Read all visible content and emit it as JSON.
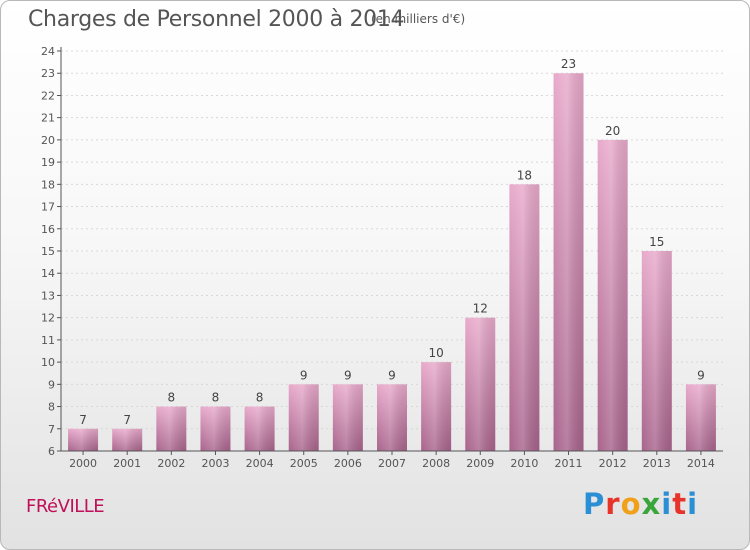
{
  "header": {
    "title": "Charges de Personnel 2000 à 2014",
    "subtitle": "(en milliers d'€)"
  },
  "footer": {
    "town": "FRéVILLE",
    "logo_text": "Proxiti",
    "logo_colors": [
      "#2a8fd4",
      "#e8332a",
      "#f0a019",
      "#3aa53a",
      "#2a8fd4",
      "#e8332a",
      "#2a8fd4"
    ]
  },
  "colors": {
    "bar_top": "#e8aacb",
    "bar_bottom": "#a8648c",
    "axis": "#555555",
    "grid": "#d8d8d8",
    "label": "#444444"
  },
  "chart_data": {
    "type": "bar",
    "categories": [
      "2000",
      "2001",
      "2002",
      "2003",
      "2004",
      "2005",
      "2006",
      "2007",
      "2008",
      "2009",
      "2010",
      "2011",
      "2012",
      "2013",
      "2014"
    ],
    "values": [
      7,
      7,
      8,
      8,
      8,
      9,
      9,
      9,
      10,
      12,
      18,
      23,
      20,
      15,
      9
    ],
    "ylim": [
      6,
      24
    ],
    "yticks": [
      6,
      7,
      8,
      9,
      10,
      11,
      12,
      13,
      14,
      15,
      16,
      17,
      18,
      19,
      20,
      21,
      22,
      23,
      24
    ],
    "grid": true,
    "data_labels": true
  }
}
